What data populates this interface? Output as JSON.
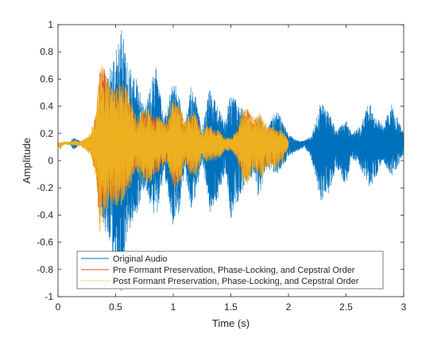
{
  "chart_data": {
    "type": "line",
    "title": "",
    "xlabel": "Time (s)",
    "ylabel": "Amplitude",
    "xlim": [
      0,
      3
    ],
    "ylim": [
      -1,
      1
    ],
    "xticks": [
      0,
      0.5,
      1,
      1.5,
      2,
      2.5,
      3
    ],
    "xtick_labels": [
      "0",
      "0.5",
      "1",
      "1.5",
      "2",
      "2.5",
      "3"
    ],
    "yticks": [
      -1,
      -0.8,
      -0.6,
      -0.4,
      -0.2,
      0,
      0.2,
      0.4,
      0.6,
      0.8,
      1
    ],
    "ytick_labels": [
      "-1",
      "-0.8",
      "-0.6",
      "-0.4",
      "-0.2",
      "0",
      "0.2",
      "0.4",
      "0.6",
      "0.8",
      "1"
    ],
    "grid": false,
    "legend_position": "bottom-left",
    "series": [
      {
        "name": "Original Audio",
        "color": "#0072BD",
        "line_style": "solid",
        "baseline": 0.13,
        "envelope": {
          "t": [
            0.0,
            0.1,
            0.13,
            0.2,
            0.28,
            0.33,
            0.4,
            0.45,
            0.5,
            0.55,
            0.6,
            0.68,
            0.75,
            0.85,
            0.92,
            1.0,
            1.05,
            1.1,
            1.15,
            1.2,
            1.25,
            1.32,
            1.38,
            1.45,
            1.5,
            1.6,
            1.7,
            1.75,
            1.8,
            1.9,
            2.0,
            2.05,
            2.1,
            2.14,
            2.2,
            2.28,
            2.35,
            2.42,
            2.5,
            2.55,
            2.62,
            2.7,
            2.75,
            2.82,
            2.9,
            3.0
          ],
          "upper": [
            0.13,
            0.13,
            0.17,
            0.14,
            0.16,
            0.27,
            0.52,
            0.68,
            0.8,
            1.0,
            0.72,
            0.6,
            0.38,
            0.7,
            0.3,
            0.62,
            0.52,
            0.25,
            0.55,
            0.46,
            0.22,
            0.55,
            0.4,
            0.3,
            0.5,
            0.38,
            0.25,
            0.35,
            0.22,
            0.38,
            0.2,
            0.16,
            0.14,
            0.15,
            0.18,
            0.44,
            0.35,
            0.22,
            0.3,
            0.2,
            0.25,
            0.45,
            0.32,
            0.27,
            0.42,
            0.2
          ],
          "lower": [
            0.13,
            0.13,
            0.08,
            0.12,
            0.1,
            -0.08,
            -0.5,
            -0.62,
            -0.9,
            -1.0,
            -0.55,
            -0.42,
            -0.2,
            -0.45,
            -0.1,
            -0.5,
            -0.42,
            -0.05,
            -0.38,
            -0.25,
            0.0,
            -0.38,
            -0.3,
            -0.1,
            -0.45,
            -0.22,
            -0.1,
            -0.32,
            -0.05,
            -0.1,
            0.02,
            0.06,
            0.08,
            0.1,
            0.0,
            -0.3,
            -0.25,
            -0.05,
            -0.2,
            0.02,
            -0.05,
            -0.2,
            -0.15,
            0.0,
            -0.12,
            0.05
          ]
        }
      },
      {
        "name": "Pre Formant Preservation, Phase-Locking, and Cepstral Order",
        "color": "#D95319",
        "line_style": "solid",
        "baseline": 0.13,
        "envelope": {
          "t": [
            0.0,
            0.02,
            0.05,
            0.1,
            0.15,
            0.2,
            0.28,
            0.33,
            0.36,
            0.4,
            0.45,
            0.5,
            0.55,
            0.6,
            0.68,
            0.75,
            0.82,
            0.9,
            0.95,
            1.0,
            1.05,
            1.1,
            1.15,
            1.2,
            1.25,
            1.3,
            1.35,
            1.4,
            1.45,
            1.5,
            1.55,
            1.6,
            1.65,
            1.7,
            1.75,
            1.8,
            1.85,
            1.9,
            1.95,
            2.0
          ],
          "upper": [
            0.12,
            0.12,
            0.13,
            0.13,
            0.14,
            0.14,
            0.18,
            0.35,
            0.66,
            0.7,
            0.55,
            0.52,
            0.58,
            0.52,
            0.3,
            0.38,
            0.34,
            0.3,
            0.28,
            0.45,
            0.4,
            0.28,
            0.34,
            0.34,
            0.18,
            0.26,
            0.22,
            0.2,
            0.16,
            0.16,
            0.2,
            0.36,
            0.38,
            0.3,
            0.34,
            0.26,
            0.24,
            0.22,
            0.2,
            0.15
          ],
          "lower": [
            0.11,
            0.09,
            0.12,
            0.12,
            0.12,
            0.11,
            0.06,
            -0.12,
            -0.5,
            -0.42,
            -0.28,
            -0.32,
            -0.3,
            -0.22,
            -0.05,
            -0.15,
            -0.12,
            -0.05,
            0.0,
            -0.2,
            -0.18,
            0.0,
            -0.1,
            -0.1,
            0.05,
            0.0,
            0.02,
            0.04,
            0.08,
            0.08,
            0.04,
            -0.12,
            -0.15,
            -0.02,
            -0.12,
            -0.05,
            -0.02,
            -0.05,
            0.0,
            0.11
          ]
        }
      },
      {
        "name": "Post Formant Preservation, Phase-Locking, and Cepstral Order",
        "color": "#EDB120",
        "line_style": "dotted",
        "baseline": 0.13,
        "envelope": {
          "t": [
            0.0,
            0.02,
            0.05,
            0.1,
            0.15,
            0.2,
            0.28,
            0.33,
            0.36,
            0.4,
            0.45,
            0.5,
            0.55,
            0.6,
            0.68,
            0.75,
            0.82,
            0.9,
            0.95,
            1.0,
            1.05,
            1.1,
            1.15,
            1.2,
            1.25,
            1.3,
            1.35,
            1.4,
            1.45,
            1.5,
            1.55,
            1.6,
            1.65,
            1.7,
            1.75,
            1.8,
            1.85,
            1.9,
            1.95,
            2.0
          ],
          "upper": [
            0.13,
            0.13,
            0.14,
            0.14,
            0.15,
            0.14,
            0.2,
            0.38,
            0.7,
            0.72,
            0.56,
            0.54,
            0.6,
            0.54,
            0.32,
            0.4,
            0.36,
            0.32,
            0.3,
            0.47,
            0.42,
            0.3,
            0.36,
            0.36,
            0.2,
            0.28,
            0.24,
            0.22,
            0.17,
            0.17,
            0.22,
            0.38,
            0.4,
            0.32,
            0.36,
            0.28,
            0.26,
            0.24,
            0.22,
            0.15
          ],
          "lower": [
            0.1,
            0.08,
            0.12,
            0.11,
            0.11,
            0.1,
            0.04,
            -0.15,
            -0.58,
            -0.48,
            -0.3,
            -0.35,
            -0.33,
            -0.25,
            -0.08,
            -0.18,
            -0.15,
            -0.07,
            -0.02,
            -0.22,
            -0.2,
            -0.02,
            -0.12,
            -0.12,
            0.03,
            -0.02,
            0.0,
            0.02,
            0.07,
            0.07,
            0.02,
            -0.15,
            -0.18,
            -0.05,
            -0.15,
            -0.08,
            -0.05,
            -0.08,
            -0.02,
            0.1
          ]
        }
      }
    ]
  }
}
